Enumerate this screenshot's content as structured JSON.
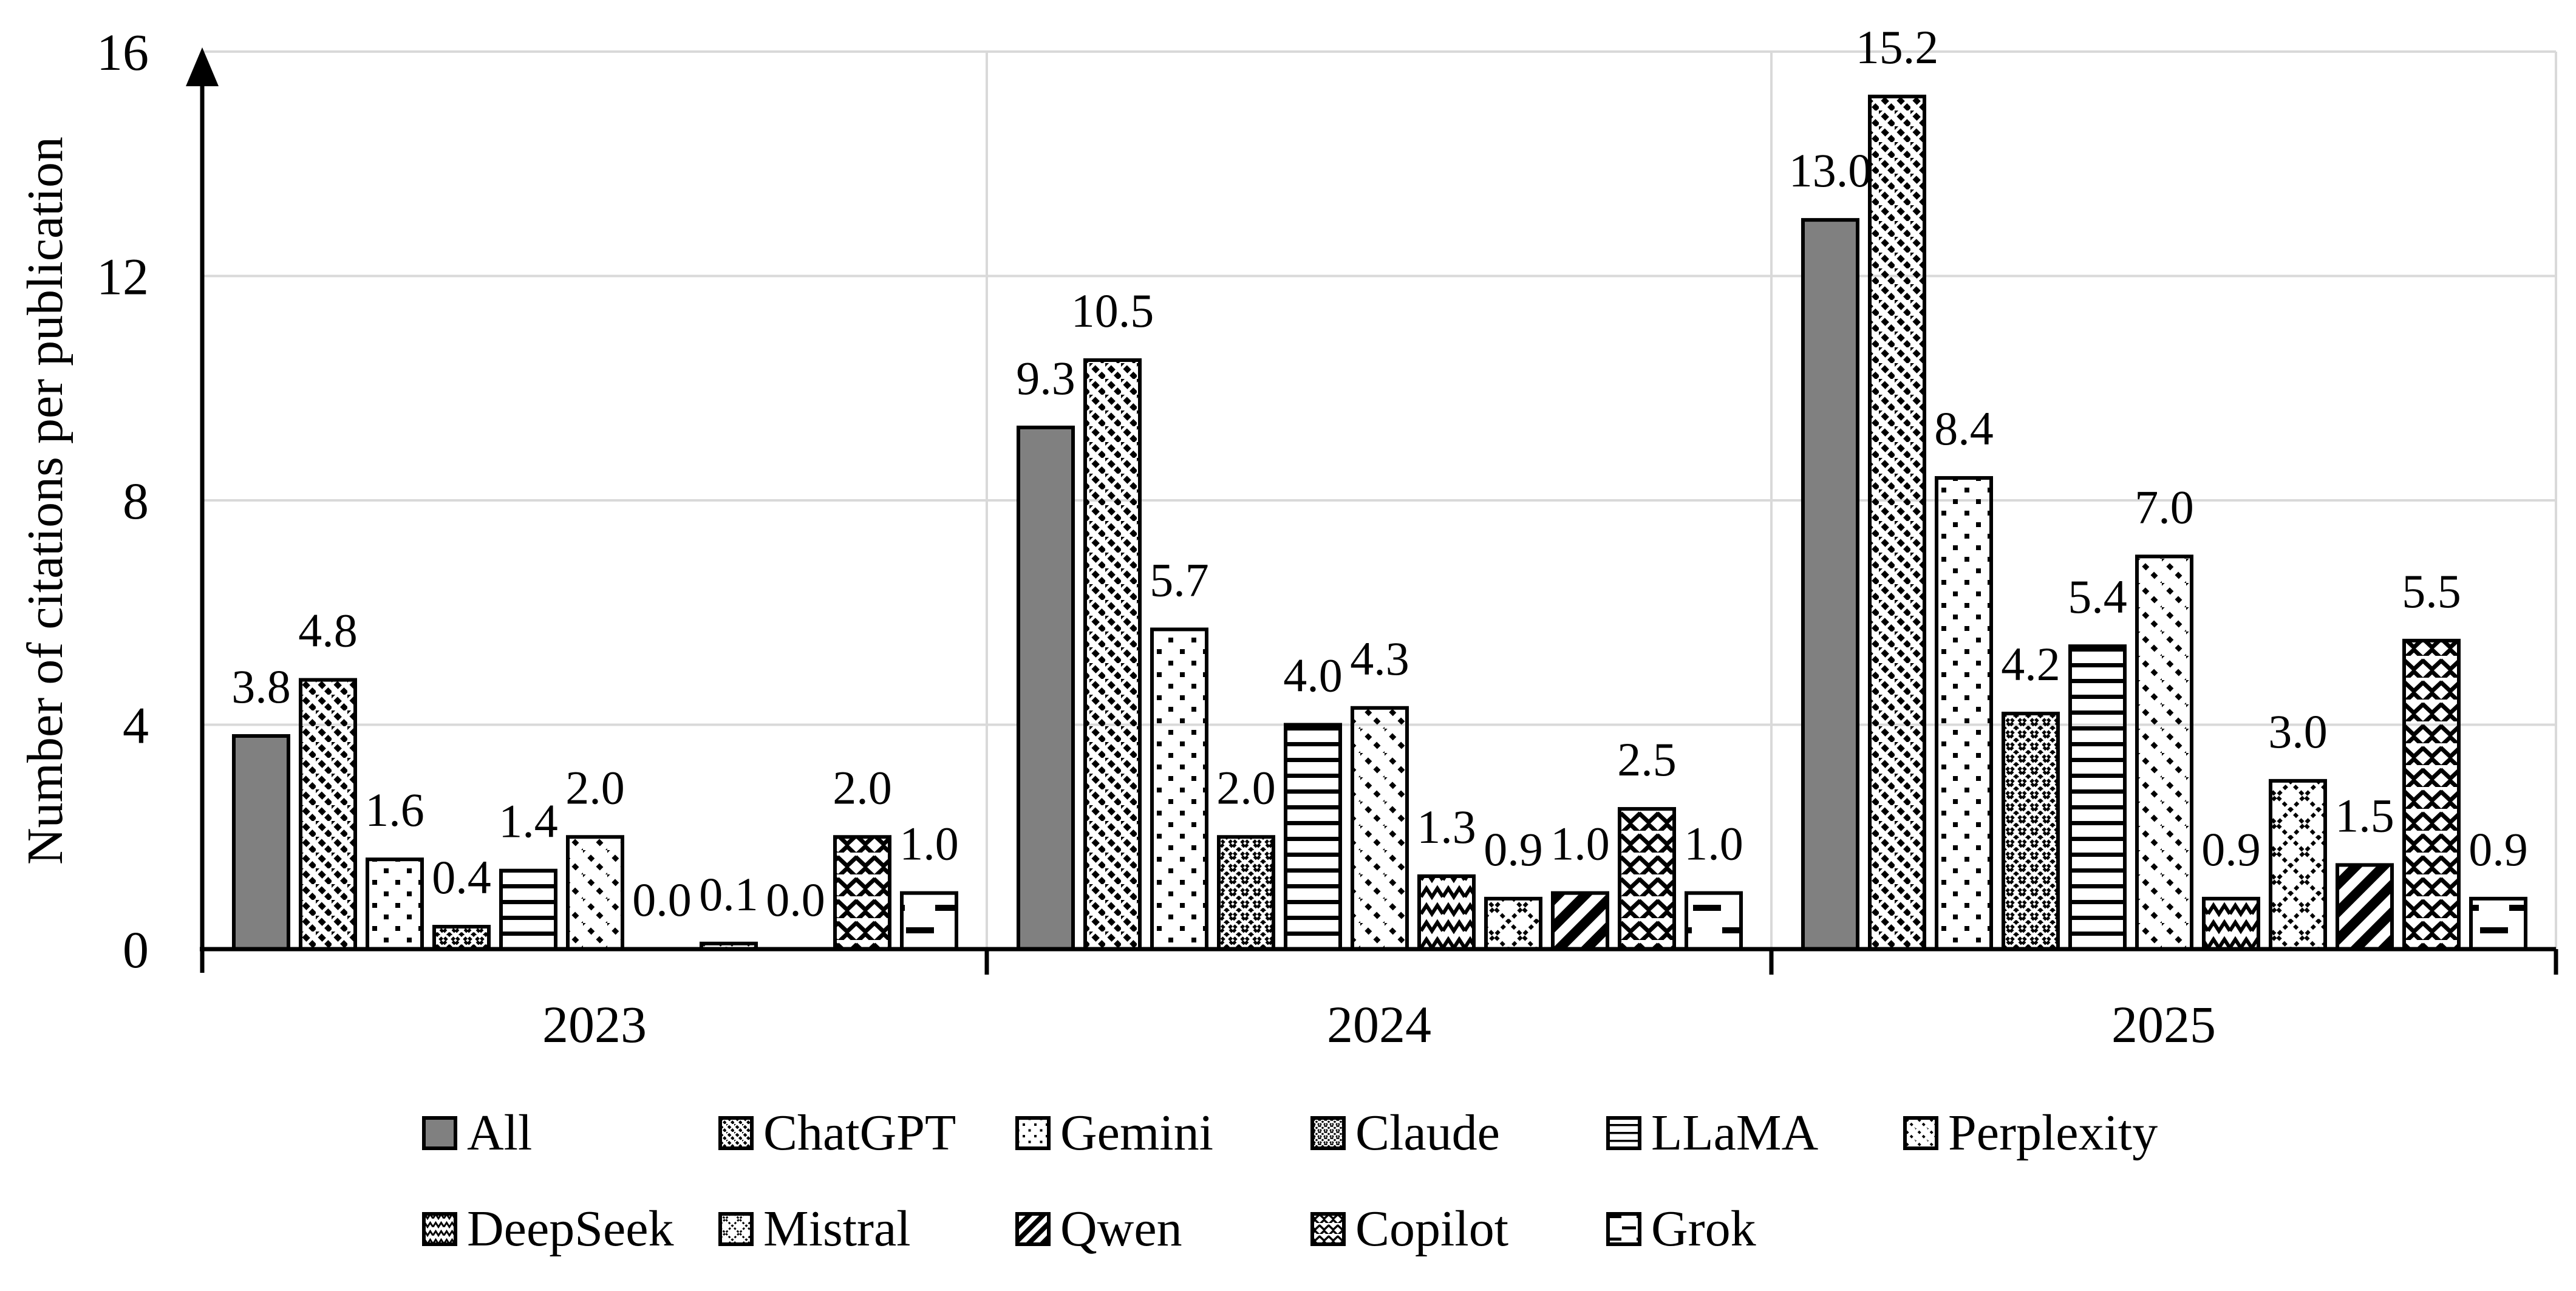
{
  "chart_data": {
    "type": "bar",
    "title": "",
    "ylabel": "Number of citations per publication",
    "xlabel": "",
    "categories": [
      "2023",
      "2024",
      "2025"
    ],
    "series": [
      {
        "name": "All",
        "pattern": "solid-gray",
        "values": [
          3.8,
          9.3,
          13.0
        ]
      },
      {
        "name": "ChatGPT",
        "pattern": "diagonal-dotted",
        "values": [
          4.8,
          10.5,
          15.2
        ]
      },
      {
        "name": "Gemini",
        "pattern": "sparse-dots",
        "values": [
          1.6,
          5.7,
          8.4
        ]
      },
      {
        "name": "Claude",
        "pattern": "dense-crosshatch",
        "values": [
          0.4,
          2.0,
          4.2
        ]
      },
      {
        "name": "LLaMA",
        "pattern": "horizontal-lines",
        "values": [
          1.4,
          4.0,
          5.4
        ]
      },
      {
        "name": "Perplexity",
        "pattern": "diagonal-dashed",
        "values": [
          2.0,
          4.3,
          7.0
        ]
      },
      {
        "name": "DeepSeek",
        "pattern": "zigzag-wave",
        "values": [
          0.0,
          1.3,
          0.9
        ]
      },
      {
        "name": "Mistral",
        "pattern": "diamond-lattice",
        "values": [
          0.1,
          0.9,
          3.0
        ]
      },
      {
        "name": "Qwen",
        "pattern": "thick-diagonal",
        "values": [
          0.0,
          1.0,
          1.5
        ]
      },
      {
        "name": "Copilot",
        "pattern": "herringbone",
        "values": [
          2.0,
          2.5,
          5.5
        ]
      },
      {
        "name": "Grok",
        "pattern": "dashed-horizontal",
        "values": [
          1.0,
          1.0,
          0.9
        ]
      }
    ],
    "yticks": [
      0,
      4,
      8,
      12,
      16
    ],
    "ylim": [
      0,
      16
    ],
    "grid": "horizontal-major-and-group-separators",
    "value_label_format": "0.0",
    "legend_position": "bottom",
    "legend_rows": [
      [
        "All",
        "ChatGPT",
        "Gemini",
        "Claude",
        "LLaMA",
        "Perplexity"
      ],
      [
        "DeepSeek",
        "Mistral",
        "Qwen",
        "Copilot",
        "Grok"
      ]
    ],
    "colors": {
      "bar_gray": "#808080",
      "gridline": "#d9d9d9",
      "ink": "#000000",
      "background": "#ffffff"
    }
  }
}
